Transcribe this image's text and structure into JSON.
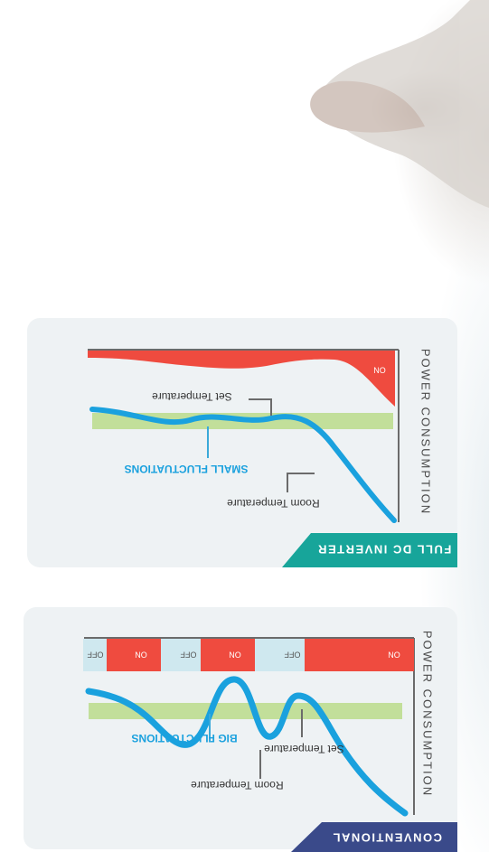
{
  "colors": {
    "panel": "#eef2f4",
    "power_red": "#ef4b3f",
    "off_blue": "#cfe8ef",
    "band_green": "#c2df9a",
    "curve_blue": "#1aa1de",
    "callout": "#3aa9d9",
    "axis": "#6b6b6b",
    "inverter_tag": "#17a59a",
    "conventional_tag": "#3a4a8a",
    "text_gray": "#4a4a4a"
  },
  "inverter_panel": {
    "title": "FULL DC INVERTER",
    "axis_label": "POWER CONSUMPTION",
    "power_label": "ON",
    "set_temp_label": "Set Temperature",
    "room_temp_label": "Room Temperature",
    "fluctuation_label": "SMALL FLUCTUATIONS"
  },
  "conventional_panel": {
    "title": "CONVENTIONAL",
    "axis_label": "POWER CONSUMPTION",
    "power_segments": [
      "ON",
      "OFF",
      "ON",
      "OFF",
      "ON",
      "OFF"
    ],
    "set_temp_label": "Set Temperature",
    "room_temp_label": "Room Temperature",
    "fluctuation_label": "BIG FLUCTUATIONS"
  }
}
